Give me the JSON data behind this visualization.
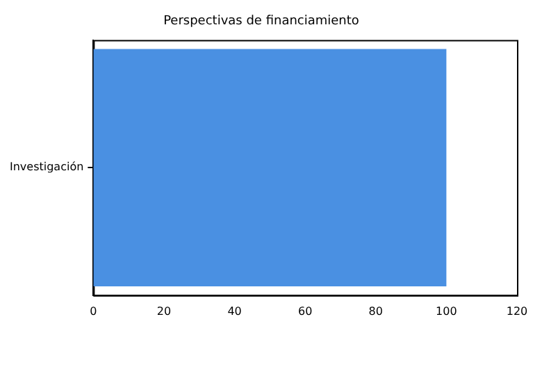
{
  "chart_data": {
    "type": "bar",
    "orientation": "horizontal",
    "title": "Perspectivas de financiamiento",
    "categories": [
      "Investigación"
    ],
    "values": [
      100
    ],
    "color": "#4a90e2",
    "xlim": [
      0,
      120
    ],
    "xticks": [
      0,
      20,
      40,
      60,
      80,
      100,
      120
    ],
    "grid": false,
    "legend": false
  }
}
